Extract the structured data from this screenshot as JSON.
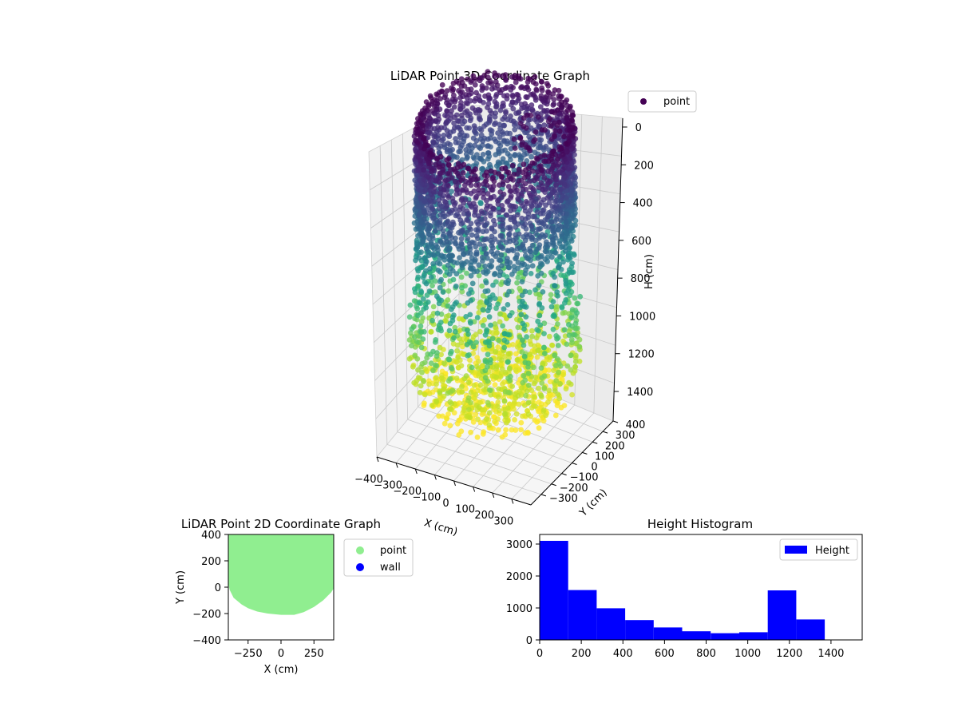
{
  "colors": {
    "viridis": [
      "#440154",
      "#482475",
      "#414487",
      "#355f8d",
      "#2a788e",
      "#21918c",
      "#22a884",
      "#44bf70",
      "#7ad151",
      "#bddf26",
      "#fde725"
    ],
    "point_2d": "#90ee90",
    "wall_2d": "#0000ff",
    "hist_bar": "#0000ff"
  },
  "chart_data": [
    {
      "type": "scatter",
      "projection": "3d",
      "title": "LiDAR Point 3D Coordinate Graph",
      "xlabel": "X (cm)",
      "ylabel": "Y (cm)",
      "zlabel": "H (cm)",
      "xlim": [
        -400,
        400
      ],
      "ylim": [
        -400,
        400
      ],
      "zlim": [
        1550,
        0
      ],
      "z_inverted": true,
      "x_ticks": [
        "−400",
        "−300",
        "−200",
        "−100",
        "0",
        "100",
        "200",
        "300"
      ],
      "y_ticks": [
        "−300",
        "−200",
        "−100",
        "0",
        "100",
        "200",
        "300",
        "400"
      ],
      "z_ticks": [
        "0",
        "200",
        "400",
        "600",
        "800",
        "1000",
        "1200",
        "1400"
      ],
      "legend": {
        "entries": [
          "point"
        ],
        "placement": "upper-right-outside"
      },
      "colormap": "viridis",
      "color_by": "H",
      "shape": "cylindrical wall radius ~400 cm from H 0 to ~1250 cm, closing to a floor disk near H 1250–1400",
      "grid": true
    },
    {
      "type": "scatter",
      "title": "LiDAR Point 2D Coordinate Graph",
      "xlabel": "X (cm)",
      "ylabel": "Y (cm)",
      "xlim": [
        -400,
        400
      ],
      "ylim": [
        -400,
        400
      ],
      "x_ticks": [
        "−250",
        "0",
        "250"
      ],
      "y_ticks": [
        "400",
        "200",
        "0",
        "−200",
        "−400"
      ],
      "series": [
        {
          "name": "point",
          "color": "#90ee90"
        },
        {
          "name": "wall",
          "color": "#0000ff"
        }
      ],
      "legend": {
        "placement": "upper-right-outside"
      },
      "grid": false
    },
    {
      "type": "bar",
      "subtype": "histogram",
      "title": "Height Histogram",
      "xlabel": "",
      "ylabel": "",
      "bin_edges": [
        0,
        137,
        274,
        411,
        548,
        685,
        822,
        959,
        1096,
        1233,
        1370
      ],
      "values": [
        3100,
        1560,
        990,
        620,
        390,
        270,
        210,
        240,
        1550,
        640
      ],
      "xlim": [
        0,
        1550
      ],
      "ylim": [
        0,
        3300
      ],
      "x_ticks": [
        "0",
        "200",
        "400",
        "600",
        "800",
        "1000",
        "1200",
        "1400"
      ],
      "y_ticks": [
        "0",
        "1000",
        "2000",
        "3000"
      ],
      "series": [
        {
          "name": "Height",
          "color": "#0000ff"
        }
      ],
      "legend": {
        "placement": "top-right"
      },
      "grid": false
    }
  ]
}
